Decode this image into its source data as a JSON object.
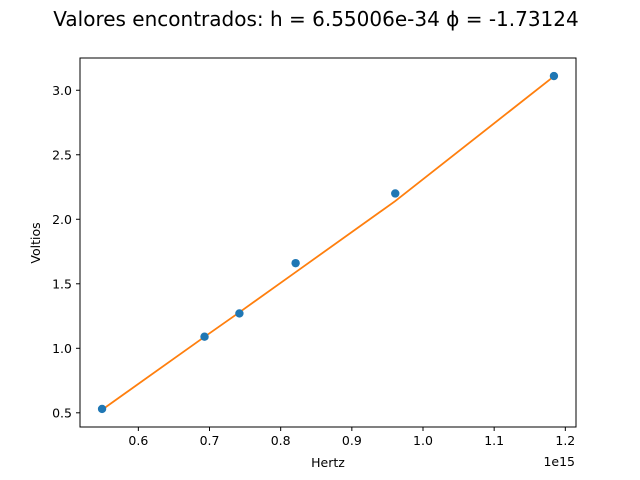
{
  "chart_data": {
    "type": "scatter",
    "title": "Valores encontrados: h = 6.55006e-34      ϕ = -1.73124",
    "xlabel": "Hertz",
    "ylabel": "Voltios",
    "x_offset_label": "1e15",
    "xlim": [
      0.518,
      1.215
    ],
    "ylim": [
      0.39,
      3.25
    ],
    "x_ticks": [
      0.6,
      0.7,
      0.8,
      0.9,
      1.0,
      1.1,
      1.2
    ],
    "x_tick_labels": [
      "0.6",
      "0.7",
      "0.8",
      "0.9",
      "1.0",
      "1.1",
      "1.2"
    ],
    "y_ticks": [
      0.5,
      1.0,
      1.5,
      2.0,
      2.5,
      3.0
    ],
    "y_tick_labels": [
      "0.5",
      "1.0",
      "1.5",
      "2.0",
      "2.5",
      "3.0"
    ],
    "grid": false,
    "series": [
      {
        "kind": "scatter",
        "color": "#1f77b4",
        "x": [
          0.549,
          0.693,
          0.742,
          0.821,
          0.961,
          1.184
        ],
        "y": [
          0.53,
          1.09,
          1.27,
          1.66,
          2.2,
          3.11
        ]
      },
      {
        "kind": "line",
        "color": "#ff7f0e",
        "x": [
          0.549,
          0.693,
          0.742,
          0.821,
          0.961,
          1.184
        ],
        "y": [
          0.524,
          1.089,
          1.279,
          1.59,
          2.141,
          3.108
        ]
      }
    ]
  }
}
